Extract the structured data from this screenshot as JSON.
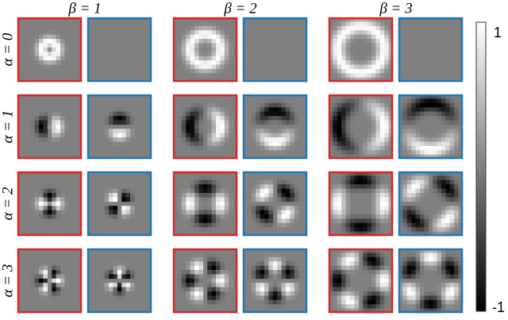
{
  "column_labels": [
    "β = 1",
    "β = 2",
    "β = 3"
  ],
  "row_labels": [
    "α = 0",
    "α = 1",
    "α = 2",
    "α = 3"
  ],
  "colorbar": {
    "max_label": "1",
    "min_label": "-1"
  }
}
